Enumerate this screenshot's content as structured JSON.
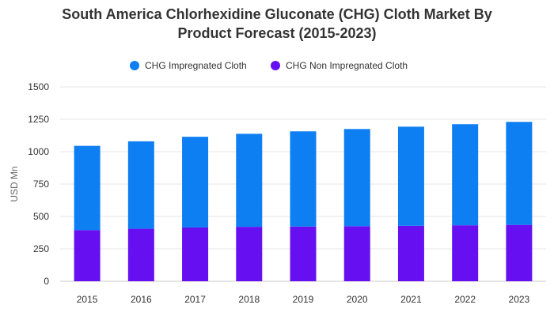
{
  "chart_data": {
    "type": "bar",
    "stacked": true,
    "title": "South America Chlorhexidine Gluconate (CHG) Cloth Market By Product Forecast (2015-2023)",
    "title_lines": [
      "South America Chlorhexidine Gluconate (CHG) Cloth Market By",
      "Product Forecast (2015-2023)"
    ],
    "xlabel": "",
    "ylabel": "USD Mn",
    "ylim": [
      0,
      1500
    ],
    "yticks": [
      0,
      250,
      500,
      750,
      1000,
      1250,
      1500
    ],
    "grid": true,
    "legend_position": "top",
    "categories": [
      "2015",
      "2016",
      "2017",
      "2018",
      "2019",
      "2020",
      "2021",
      "2022",
      "2023"
    ],
    "series": [
      {
        "name": "CHG Non Impregnated Cloth",
        "color": "#6610f2",
        "values": [
          395,
          405,
          415,
          420,
          422,
          425,
          428,
          432,
          435
        ]
      },
      {
        "name": "CHG Impregnated Cloth",
        "color": "#0d7ff2",
        "values": [
          650,
          675,
          700,
          718,
          735,
          750,
          765,
          780,
          795
        ]
      }
    ],
    "legend_order": [
      "CHG Impregnated Cloth",
      "CHG Non Impregnated Cloth"
    ]
  }
}
